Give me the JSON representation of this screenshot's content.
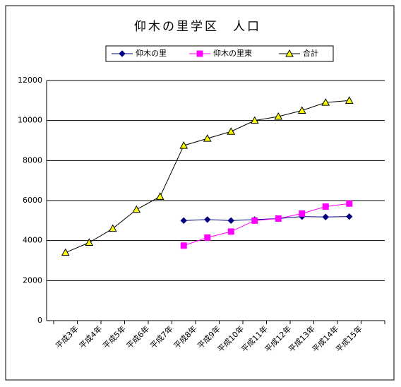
{
  "chart_data": {
    "type": "line",
    "title": "仰木の里学区　人口",
    "categories": [
      "平成3年",
      "平成4年",
      "平成5年",
      "平成6年",
      "平成7年",
      "平成8年",
      "平成9年",
      "平成10年",
      "平成11年",
      "平成12年",
      "平成13年",
      "平成14年",
      "平成15年"
    ],
    "series": [
      {
        "name": "仰木の里",
        "color": "#000080",
        "line_color": "#000080",
        "marker": "diamond",
        "values": [
          null,
          null,
          null,
          null,
          null,
          5000,
          5050,
          5000,
          5050,
          5100,
          5200,
          5180,
          5200
        ]
      },
      {
        "name": "仰木の里東",
        "color": "#ff00ff",
        "line_color": "#ff00ff",
        "marker": "square",
        "values": [
          null,
          null,
          null,
          null,
          null,
          3750,
          4150,
          4450,
          5000,
          5100,
          5350,
          5700,
          5850
        ]
      },
      {
        "name": "合計",
        "color": "#ffff00",
        "line_color": "#000000",
        "marker": "triangle",
        "values": [
          3400,
          3900,
          4600,
          5550,
          6200,
          8750,
          9100,
          9450,
          10000,
          10200,
          10500,
          10900,
          11000
        ]
      }
    ],
    "ylim": [
      0,
      12000
    ],
    "yticks": [
      0,
      2000,
      4000,
      6000,
      8000,
      10000,
      12000
    ],
    "grid": true,
    "legend": "top"
  }
}
